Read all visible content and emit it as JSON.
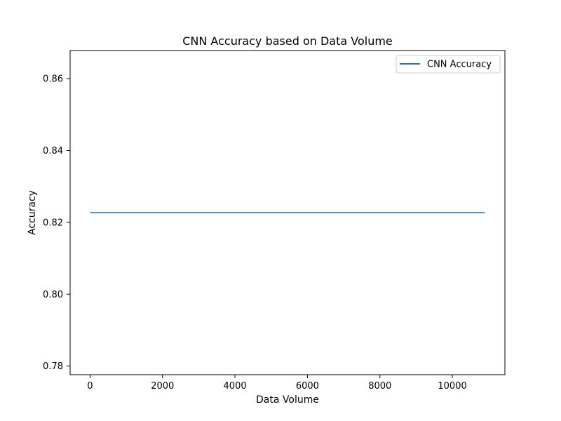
{
  "chart_data": {
    "type": "line",
    "title": "CNN Accuracy based on Data Volume",
    "xlabel": "Data Volume",
    "ylabel": "Accuracy",
    "xlim": [
      -550,
      11450
    ],
    "ylim": [
      0.7776,
      0.8678
    ],
    "x_ticks": [
      0,
      2000,
      4000,
      6000,
      8000,
      10000
    ],
    "x_tick_labels": [
      "0",
      "2000",
      "4000",
      "6000",
      "8000",
      "10000"
    ],
    "y_ticks": [
      0.78,
      0.8,
      0.82,
      0.84,
      0.86
    ],
    "y_tick_labels": [
      "0.78",
      "0.80",
      "0.82",
      "0.84",
      "0.86"
    ],
    "grid": false,
    "legend": {
      "position": "top-right"
    },
    "series": [
      {
        "name": "CNN Accuracy",
        "color": "#1f77b4",
        "x": [
          0,
          10900
        ],
        "y": [
          0.8227,
          0.8227
        ]
      }
    ]
  }
}
